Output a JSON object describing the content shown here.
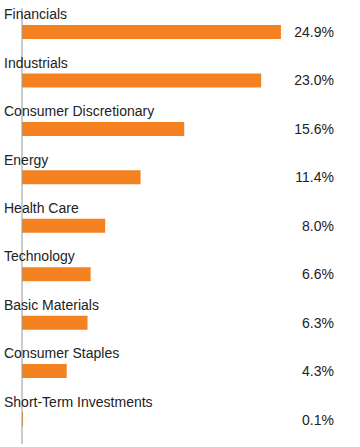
{
  "chart_data": {
    "type": "bar",
    "orientation": "horizontal",
    "categories": [
      "Financials",
      "Industrials",
      "Consumer Discretionary",
      "Energy",
      "Health Care",
      "Technology",
      "Basic Materials",
      "Consumer Staples",
      "Short-Term Investments"
    ],
    "values": [
      24.9,
      23.0,
      15.6,
      11.4,
      8.0,
      6.6,
      6.3,
      4.3,
      0.1
    ],
    "value_labels": [
      "24.9%",
      "23.0%",
      "15.6%",
      "11.4%",
      "8.0%",
      "6.6%",
      "6.3%",
      "4.3%",
      "0.1%"
    ],
    "color": "#f58220",
    "xlim": [
      0,
      30
    ],
    "data_labels": true,
    "tick_labels": "y"
  }
}
